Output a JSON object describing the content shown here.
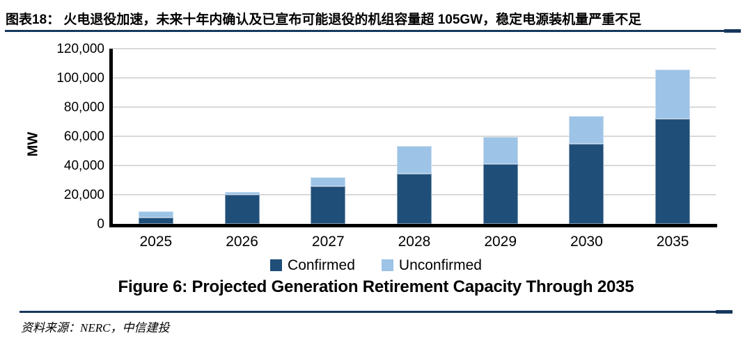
{
  "header": {
    "title": "图表18：  火电退役加速，未来十年内确认及已宣布可能退役的机组容量超 105GW，稳定电源装机量严重不足"
  },
  "figure_caption": "Figure 6: Projected Generation Retirement Capacity Through 2035",
  "source": "资料来源：NERC，中信建投",
  "colors": {
    "confirmed": "#1F4E79",
    "unconfirmed": "#9DC3E6",
    "rule": "#17375D",
    "gridline": "#D9D9D9",
    "axis": "#000000"
  },
  "chart_data": {
    "type": "bar",
    "stacked": true,
    "categories": [
      "2025",
      "2026",
      "2027",
      "2028",
      "2029",
      "2030",
      "2035"
    ],
    "series": [
      {
        "name": "Confirmed",
        "color": "#1F4E79",
        "values": [
          4500,
          20000,
          25500,
          34500,
          41000,
          55000,
          72000
        ]
      },
      {
        "name": "Unconfirmed",
        "color": "#9DC3E6",
        "values": [
          4000,
          2000,
          6500,
          19000,
          18500,
          19000,
          33500
        ]
      }
    ],
    "totals": [
      8500,
      22000,
      32000,
      53500,
      59500,
      74000,
      105500
    ],
    "ylabel": "MW",
    "ylim": [
      0,
      120000
    ],
    "ytick_step": 20000,
    "grid": true,
    "legend_position": "bottom"
  }
}
